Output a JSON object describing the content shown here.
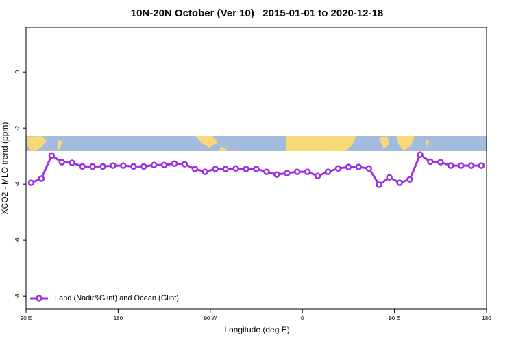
{
  "chart_data": {
    "type": "line",
    "title": "10N-20N October (Ver 10)   2015-01-01 to 2020-12-18",
    "x_label": "Longitude (deg E)",
    "y_label": "XCO2 - MLO trend (ppm)",
    "x": [
      95,
      105,
      115,
      125,
      135,
      145,
      155,
      165,
      175,
      185,
      195,
      205,
      215,
      225,
      235,
      245,
      255,
      265,
      275,
      285,
      295,
      305,
      315,
      325,
      335,
      345,
      355,
      365,
      375,
      385,
      395,
      405,
      415,
      425,
      435,
      445,
      455,
      465,
      475,
      485,
      495,
      505,
      515,
      525,
      535
    ],
    "series": [
      {
        "name": "Land (Nadir&Glint) and Ocean (Glint)",
        "color": "#9b30e0",
        "values": [
          -3.95,
          -3.8,
          -2.98,
          -3.22,
          -3.24,
          -3.37,
          -3.37,
          -3.37,
          -3.34,
          -3.34,
          -3.37,
          -3.37,
          -3.32,
          -3.32,
          -3.27,
          -3.29,
          -3.46,
          -3.56,
          -3.46,
          -3.46,
          -3.44,
          -3.46,
          -3.46,
          -3.56,
          -3.66,
          -3.61,
          -3.56,
          -3.56,
          -3.71,
          -3.56,
          -3.44,
          -3.39,
          -3.39,
          -3.44,
          -4.02,
          -3.76,
          -3.95,
          -3.83,
          -2.95,
          -3.2,
          -3.22,
          -3.34,
          -3.34,
          -3.34,
          -3.34
        ]
      }
    ],
    "xlim": [
      90,
      540
    ],
    "xticks": [
      {
        "value": 90,
        "label": "90 E"
      },
      180,
      {
        "value": 270,
        "label": "90 W"
      },
      {
        "value": 360,
        "label": "0"
      },
      {
        "value": 450,
        "label": "90 E"
      },
      {
        "value": 540,
        "label": "180"
      }
    ],
    "ylim": [
      -8.46,
      1.59
    ],
    "yticks": [
      0,
      -2,
      -4,
      -6,
      -8
    ],
    "legend": "bottom-left"
  }
}
